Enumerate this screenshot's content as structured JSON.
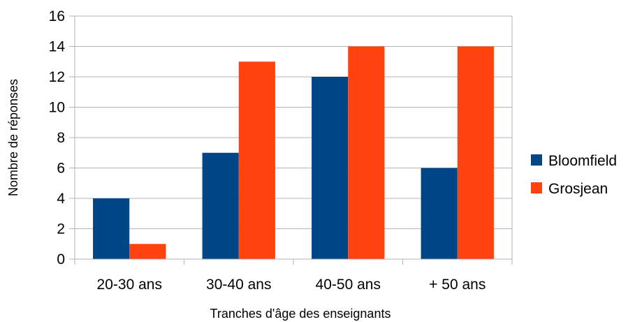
{
  "chart_data": {
    "type": "bar",
    "title": "",
    "xlabel": "Tranches d'âge des enseignants",
    "ylabel": "Nombre de réponses",
    "ylim": [
      0,
      16
    ],
    "yticks": [
      0,
      2,
      4,
      6,
      8,
      10,
      12,
      14,
      16
    ],
    "grid": true,
    "legend_position": "right",
    "categories": [
      "20-30 ans",
      "30-40 ans",
      "40-50 ans",
      "+ 50 ans"
    ],
    "series": [
      {
        "name": "Bloomfield",
        "color": "#004586",
        "values": [
          4,
          7,
          12,
          6
        ]
      },
      {
        "name": "Grosjean",
        "color": "#ff420e",
        "values": [
          1,
          13,
          14,
          14
        ]
      }
    ]
  }
}
